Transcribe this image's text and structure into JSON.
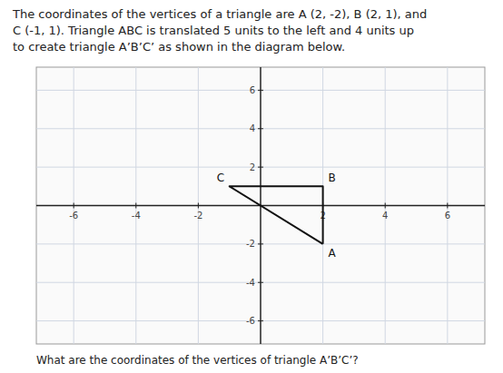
{
  "chart_data": {
    "type": "line",
    "title": "The coordinates of the vertices of a triangle are A (2, -2), B (2, 1), and\nC (-1, 1). Triangle ABC is translated 5 units to the left and 4 units up\nto create triangle A’B’C’ as shown in the diagram below.",
    "caption": "What are the coordinates of the vertices of triangle A’B’C’?",
    "x": [
      2,
      2,
      -1,
      2
    ],
    "values": [
      -2,
      1,
      1,
      -2
    ],
    "color": "#111111",
    "annotations": [
      {
        "text": "A",
        "x": 2,
        "y": -2
      },
      {
        "text": "B",
        "x": 2,
        "y": 1
      },
      {
        "text": "C",
        "x": -1,
        "y": 1
      }
    ],
    "xlim": [
      -7.2,
      7.2
    ],
    "ylim": [
      -7.2,
      7.2
    ],
    "xticks": [
      -6,
      -4,
      -2,
      2,
      4,
      6
    ],
    "yticks": [
      -6,
      -4,
      -2,
      2,
      4,
      6
    ],
    "grid": true
  }
}
